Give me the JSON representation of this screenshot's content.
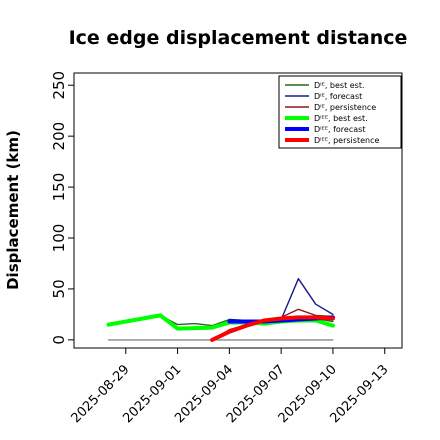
{
  "chart_data": {
    "type": "line",
    "title": "Ice edge displacement distance",
    "ylabel": "Displacement (km)",
    "xlabel": "",
    "ylim": [
      -8,
      262
    ],
    "xlim": [
      "2025-08-26",
      "2025-09-14"
    ],
    "yticks": [
      0,
      50,
      100,
      150,
      200,
      250
    ],
    "xticks": [
      "2025-08-29",
      "2025-09-01",
      "2025-09-04",
      "2025-09-07",
      "2025-09-10",
      "2025-09-13"
    ],
    "highlight_xtick": "2025-09-04",
    "highlight_color": "#228b22",
    "legend_position": "top-right",
    "grid": false,
    "series": [
      {
        "name": "Dᴵᴱ, best est.",
        "color": "#1a6e1a",
        "width": 1.4,
        "x": [
          "2025-08-28",
          "2025-08-31",
          "2025-09-01",
          "2025-09-02",
          "2025-09-03",
          "2025-09-04",
          "2025-09-05",
          "2025-09-06",
          "2025-09-07",
          "2025-09-08",
          "2025-09-09",
          "2025-09-10"
        ],
        "values": [
          15,
          24,
          15,
          16,
          14,
          20,
          18,
          19,
          20,
          19,
          21,
          18
        ]
      },
      {
        "name": "Dᴵᴱ, forecast",
        "color": "#1a1a8a",
        "width": 1.4,
        "x": [
          "2025-09-04",
          "2025-09-05",
          "2025-09-06",
          "2025-09-07",
          "2025-09-08",
          "2025-09-09",
          "2025-09-10"
        ],
        "values": [
          20,
          19,
          18,
          20,
          60,
          35,
          25
        ]
      },
      {
        "name": "Dᴵᴱ, persistence",
        "color": "#8b1a1a",
        "width": 1.4,
        "x": [
          "2025-09-03",
          "2025-09-04",
          "2025-09-05",
          "2025-09-06",
          "2025-09-07",
          "2025-09-08",
          "2025-09-09",
          "2025-09-10"
        ],
        "values": [
          0,
          10,
          15,
          19,
          22,
          30,
          24,
          23
        ]
      },
      {
        "name": "Dᴵᴱᴱ, best est.",
        "color": "#00ff00",
        "width": 4,
        "x": [
          "2025-08-28",
          "2025-08-31",
          "2025-09-01",
          "2025-09-03",
          "2025-09-04",
          "2025-09-05",
          "2025-09-06",
          "2025-09-07",
          "2025-09-08",
          "2025-09-09",
          "2025-09-10"
        ],
        "values": [
          15,
          24,
          11,
          12,
          17,
          17,
          16,
          18,
          19,
          19,
          14
        ]
      },
      {
        "name": "Dᴵᴱᴱ, forecast",
        "color": "#0000ff",
        "width": 4,
        "x": [
          "2025-09-04",
          "2025-09-05",
          "2025-09-06",
          "2025-09-07",
          "2025-09-08",
          "2025-09-09",
          "2025-09-10"
        ],
        "values": [
          18,
          18,
          18,
          19,
          20,
          21,
          22
        ]
      },
      {
        "name": "Dᴵᴱᴱ, persistence",
        "color": "#ff0000",
        "width": 4,
        "x": [
          "2025-09-03",
          "2025-09-04",
          "2025-09-05",
          "2025-09-06",
          "2025-09-07",
          "2025-09-08",
          "2025-09-09",
          "2025-09-10"
        ],
        "values": [
          0,
          8,
          14,
          19,
          21,
          22,
          22,
          21
        ]
      },
      {
        "name": "",
        "color": "#888888",
        "width": 1.4,
        "x": [
          "2025-08-28",
          "2025-09-10"
        ],
        "values": [
          0,
          0
        ]
      }
    ]
  }
}
